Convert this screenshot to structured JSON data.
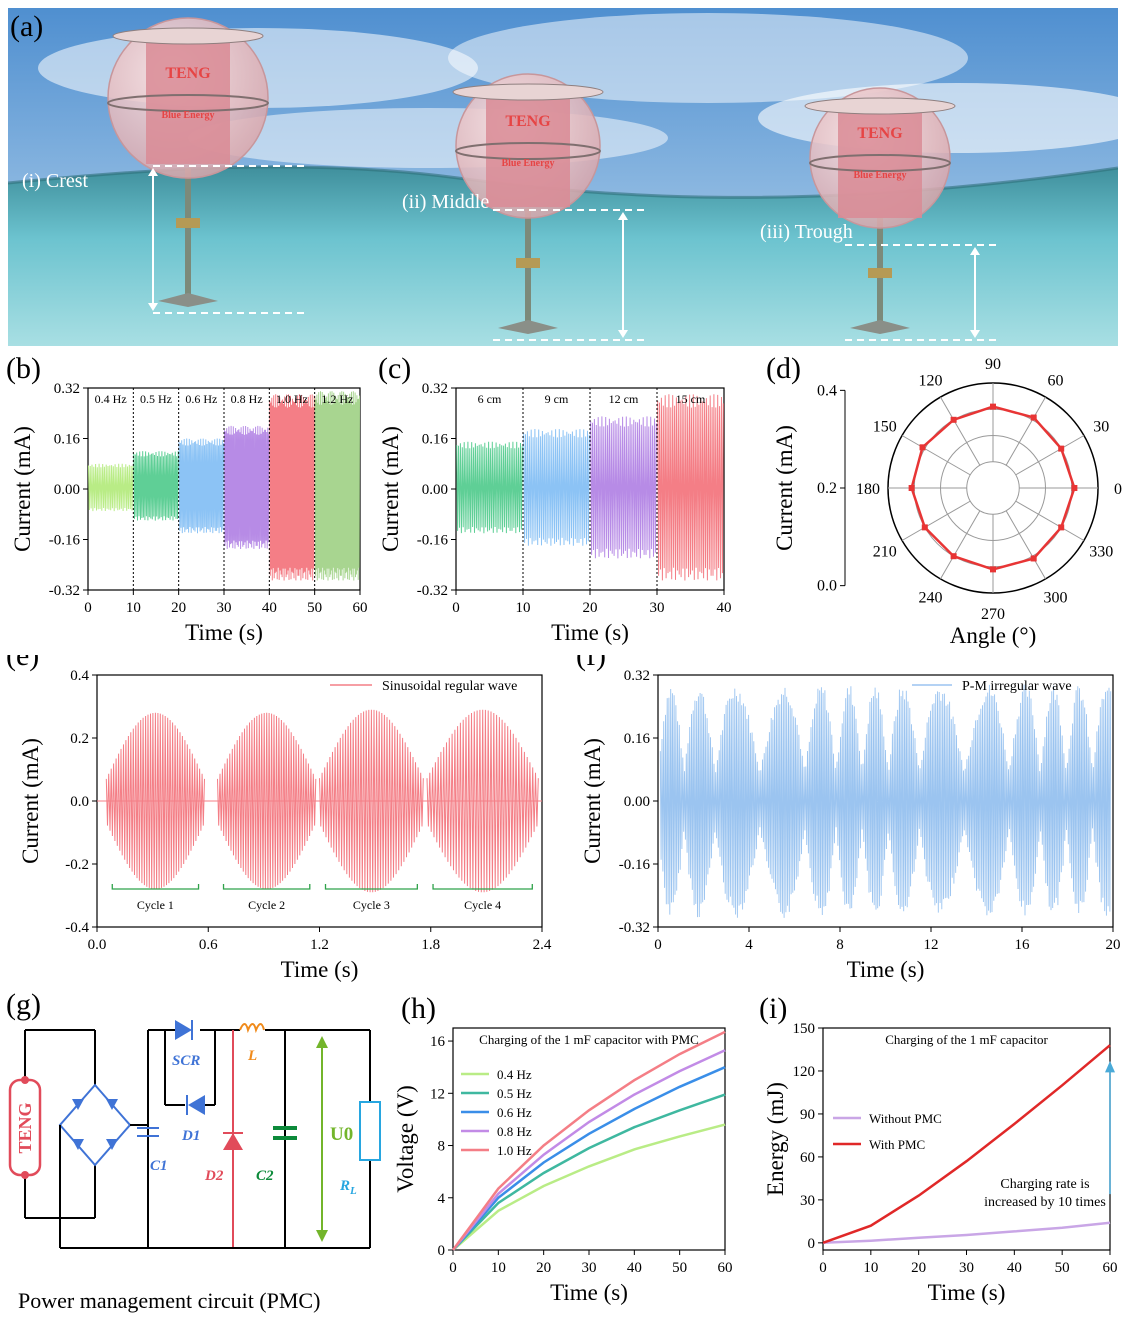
{
  "panels": {
    "a": {
      "label": "(a)",
      "positions": [
        "(i) Crest",
        "(ii) Middle",
        "(iii) Trough"
      ],
      "device_title": "TENG",
      "device_subtitle": "Blue Energy",
      "colors": {
        "sky": "#6fa3d8",
        "sea": "#5fb3c4",
        "sphere": "#f2c6c8",
        "cylinder": "#d98b95",
        "text": "#e64545"
      }
    },
    "g": {
      "label": "(g)",
      "caption": "Power management circuit (PMC)",
      "components": {
        "teng": "TENG",
        "scr": "SCR",
        "l": "L",
        "c1": "C1",
        "d1": "D1",
        "d2": "D2",
        "c2": "C2",
        "u0": "U0",
        "rl": "R",
        "rl_sub": "L"
      },
      "colors": {
        "teng": "#e14b5a",
        "blue": "#3f73d6",
        "orange": "#f08a1a",
        "red": "#e14b5a",
        "green": "#0c8a3a",
        "lime": "#73b52b",
        "cyan": "#27a6e0"
      }
    }
  },
  "chart_data": [
    {
      "id": "b",
      "panel_label": "(b)",
      "type": "line",
      "xlabel": "Time (s)",
      "ylabel": "Current (mA)",
      "xlim": [
        0,
        60
      ],
      "ylim": [
        -0.32,
        0.32
      ],
      "xticks": [
        "0",
        "10",
        "20",
        "30",
        "40",
        "50",
        "60"
      ],
      "yticks": [
        "-0.32",
        "-0.16",
        "0.00",
        "0.16",
        "0.32"
      ],
      "segments": [
        {
          "label": "0.4 Hz",
          "x": [
            0,
            10
          ],
          "max": 0.08,
          "min": -0.07,
          "color": "#b9ec86"
        },
        {
          "label": "0.5 Hz",
          "x": [
            10,
            20
          ],
          "max": 0.12,
          "min": -0.1,
          "color": "#5fcf96"
        },
        {
          "label": "0.6 Hz",
          "x": [
            20,
            30
          ],
          "max": 0.16,
          "min": -0.14,
          "color": "#8cc3f5"
        },
        {
          "label": "0.8 Hz",
          "x": [
            30,
            40
          ],
          "max": 0.2,
          "min": -0.19,
          "color": "#b78be6"
        },
        {
          "label": "1.0 Hz",
          "x": [
            40,
            50
          ],
          "max": 0.3,
          "min": -0.29,
          "color": "#f47e86"
        },
        {
          "label": "1.2 Hz",
          "x": [
            50,
            60
          ],
          "max": 0.31,
          "min": -0.29,
          "color": "#a8d590"
        }
      ]
    },
    {
      "id": "c",
      "panel_label": "(c)",
      "type": "line",
      "xlabel": "Time (s)",
      "ylabel": "Current (mA)",
      "xlim": [
        0,
        40
      ],
      "ylim": [
        -0.32,
        0.32
      ],
      "xticks": [
        "0",
        "10",
        "20",
        "30",
        "40"
      ],
      "yticks": [
        "-0.32",
        "-0.16",
        "0.00",
        "0.16",
        "0.32"
      ],
      "segments": [
        {
          "label": "6 cm",
          "x": [
            0,
            10
          ],
          "max": 0.15,
          "min": -0.14,
          "color": "#5fcf96"
        },
        {
          "label": "9 cm",
          "x": [
            10,
            20
          ],
          "max": 0.19,
          "min": -0.18,
          "color": "#8cc3f5"
        },
        {
          "label": "12 cm",
          "x": [
            20,
            30
          ],
          "max": 0.23,
          "min": -0.22,
          "color": "#b78be6"
        },
        {
          "label": "15 cm",
          "x": [
            30,
            40
          ],
          "max": 0.3,
          "min": -0.29,
          "color": "#f47e86"
        }
      ]
    },
    {
      "id": "d",
      "panel_label": "(d)",
      "type": "polar",
      "xlabel": "Angle (°)",
      "ylabel": "Current (mA)",
      "rlim": [
        0,
        0.4
      ],
      "rticks": [
        "0.0",
        "0.2",
        "0.4"
      ],
      "angles": [
        "0",
        "30",
        "60",
        "90",
        "120",
        "150",
        "180",
        "210",
        "240",
        "270",
        "300",
        "330"
      ],
      "values": [
        0.31,
        0.3,
        0.31,
        0.31,
        0.3,
        0.31,
        0.31,
        0.3,
        0.3,
        0.31,
        0.31,
        0.3
      ],
      "color": "#e83535"
    },
    {
      "id": "e",
      "panel_label": "(e)",
      "type": "line",
      "xlabel": "Time (s)",
      "ylabel": "Current (mA)",
      "xlim": [
        0,
        2.4
      ],
      "ylim": [
        -0.4,
        0.4
      ],
      "xticks": [
        "0.0",
        "0.6",
        "1.2",
        "1.8",
        "2.4"
      ],
      "yticks": [
        "-0.4",
        "-0.2",
        "0.0",
        "0.2",
        "0.4"
      ],
      "legend": "Sinusoidal regular wave",
      "color": "#f47e86",
      "cycles": [
        {
          "label": "Cycle 1",
          "start": 0.05,
          "end": 0.58,
          "peak": 0.28
        },
        {
          "label": "Cycle 2",
          "start": 0.65,
          "end": 1.18,
          "peak": 0.28
        },
        {
          "label": "Cycle 3",
          "start": 1.2,
          "end": 1.76,
          "peak": 0.29
        },
        {
          "label": "Cycle 4",
          "start": 1.78,
          "end": 2.38,
          "peak": 0.29
        }
      ]
    },
    {
      "id": "f",
      "panel_label": "(f)",
      "type": "line",
      "xlabel": "Time (s)",
      "ylabel": "Current (mA)",
      "xlim": [
        0,
        20
      ],
      "ylim": [
        -0.32,
        0.32
      ],
      "xticks": [
        "0",
        "4",
        "8",
        "12",
        "16",
        "20"
      ],
      "yticks": [
        "-0.32",
        "-0.16",
        "0.00",
        "0.16",
        "0.32"
      ],
      "legend": "P-M irregular wave",
      "color": "#9bc4f0",
      "max": 0.3,
      "min": -0.3
    },
    {
      "id": "h",
      "panel_label": "(h)",
      "type": "line",
      "title": "Charging of the 1 mF capacitor with PMC",
      "xlabel": "Time (s)",
      "ylabel": "Voltage (V)",
      "xlim": [
        0,
        60
      ],
      "ylim": [
        0,
        17
      ],
      "xticks": [
        "0",
        "10",
        "20",
        "30",
        "40",
        "50",
        "60"
      ],
      "yticks": [
        "0",
        "4",
        "8",
        "12",
        "16"
      ],
      "x": [
        0,
        10,
        20,
        30,
        40,
        50,
        60
      ],
      "series": [
        {
          "name": "0.4 Hz",
          "values": [
            0,
            3.0,
            4.9,
            6.4,
            7.7,
            8.7,
            9.6
          ],
          "color": "#b9ec86"
        },
        {
          "name": "0.5 Hz",
          "values": [
            0,
            3.6,
            5.9,
            7.8,
            9.4,
            10.7,
            11.9
          ],
          "color": "#3fb8a0"
        },
        {
          "name": "0.6 Hz",
          "values": [
            0,
            4.0,
            6.7,
            8.9,
            10.8,
            12.5,
            14.0
          ],
          "color": "#3a8ee8"
        },
        {
          "name": "0.8 Hz",
          "values": [
            0,
            4.3,
            7.3,
            9.8,
            11.9,
            13.7,
            15.3
          ],
          "color": "#c28be6"
        },
        {
          "name": "1.0 Hz",
          "values": [
            0,
            4.7,
            8.0,
            10.7,
            13.0,
            15.0,
            16.7
          ],
          "color": "#f47e86"
        }
      ]
    },
    {
      "id": "i",
      "panel_label": "(i)",
      "type": "line",
      "title": "Charging of the 1 mF capacitor",
      "xlabel": "Time (s)",
      "ylabel": "Energy (mJ)",
      "xlim": [
        0,
        60
      ],
      "ylim": [
        -5,
        150
      ],
      "xticks": [
        "0",
        "10",
        "20",
        "30",
        "40",
        "50",
        "60"
      ],
      "yticks": [
        "0",
        "30",
        "60",
        "90",
        "120",
        "150"
      ],
      "x": [
        0,
        10,
        20,
        30,
        40,
        50,
        60
      ],
      "series": [
        {
          "name": "Without PMC",
          "values": [
            0,
            1.5,
            3.5,
            5.5,
            8,
            10.5,
            14
          ],
          "color": "#c9a6e6"
        },
        {
          "name": "With PMC",
          "values": [
            0,
            12,
            33,
            57,
            83,
            110,
            138
          ],
          "color": "#e02828"
        }
      ],
      "annotation": [
        "Charging rate is",
        "increased by 10 times"
      ]
    }
  ]
}
